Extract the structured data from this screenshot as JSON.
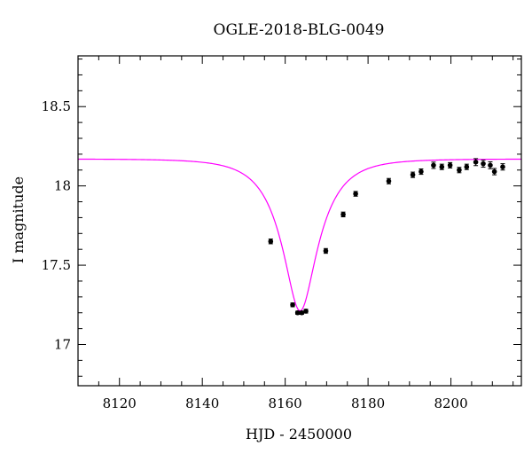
{
  "chart_data": {
    "type": "scatter",
    "title": "OGLE-2018-BLG-0049",
    "xlabel": "HJD - 2450000",
    "ylabel": "I magnitude",
    "xlim": [
      8110,
      8217
    ],
    "ylim": [
      18.82,
      16.74
    ],
    "y_inverted": true,
    "xticks": [
      8120,
      8140,
      8160,
      8180,
      8200
    ],
    "yticks": [
      17,
      17.5,
      18,
      18.5
    ],
    "ytick_labels": [
      "17",
      "17.5",
      "18",
      "18.5"
    ],
    "grid": false,
    "colors": {
      "model": "#ff00ff",
      "points": "#000000"
    },
    "series": [
      {
        "kind": "points",
        "x": [
          8156.5,
          8161.8,
          8163.0,
          8164.0,
          8165.0,
          8169.8,
          8174.0,
          8177.0,
          8185.0,
          8190.8,
          8192.8,
          8195.8,
          8197.8,
          8199.8,
          8202.0,
          8203.8,
          8206.0,
          8207.8,
          8209.5,
          8210.5,
          8212.5
        ],
        "y": [
          17.65,
          17.25,
          17.2,
          17.2,
          17.21,
          17.59,
          17.82,
          17.95,
          18.03,
          18.07,
          18.09,
          18.13,
          18.12,
          18.13,
          18.1,
          18.12,
          18.15,
          18.14,
          18.13,
          18.09,
          18.12
        ],
        "yerr": [
          0.015,
          0.012,
          0.01,
          0.01,
          0.012,
          0.015,
          0.015,
          0.015,
          0.017,
          0.017,
          0.017,
          0.02,
          0.017,
          0.017,
          0.017,
          0.017,
          0.022,
          0.022,
          0.022,
          0.02,
          0.02
        ]
      },
      {
        "kind": "model",
        "model": {
          "t0": 8163.6,
          "tE": 9.0,
          "u0": 0.37,
          "base_mag": 18.17,
          "fs": 0.77
        }
      }
    ]
  }
}
